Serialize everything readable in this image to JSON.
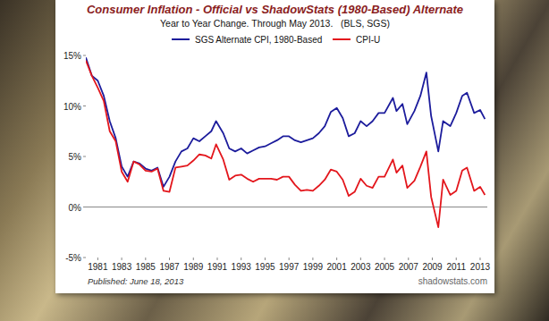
{
  "chart_data": {
    "type": "line",
    "title": "Consumer Inflation - Official vs ShadowStats (1980-Based) Alternate",
    "subtitle": "Year to Year Change. Through May 2013.   (BLS, SGS)",
    "annotations": [
      "Published: June 18, 2013",
      "shadowstats.com"
    ],
    "x": [
      1980.0,
      1980.5,
      1981.0,
      1981.5,
      1982.0,
      1982.5,
      1983.0,
      1983.5,
      1984.0,
      1984.5,
      1985.0,
      1985.5,
      1986.0,
      1986.5,
      1987.0,
      1987.5,
      1988.0,
      1988.5,
      1989.0,
      1989.5,
      1990.0,
      1990.5,
      1990.9,
      1991.5,
      1992.0,
      1992.5,
      1993.0,
      1993.5,
      1994.0,
      1994.5,
      1995.0,
      1995.5,
      1996.0,
      1996.5,
      1997.0,
      1997.5,
      1998.0,
      1998.5,
      1999.0,
      1999.5,
      2000.0,
      2000.5,
      2001.0,
      2001.5,
      2002.0,
      2002.5,
      2003.0,
      2003.5,
      2004.0,
      2004.5,
      2005.0,
      2005.7,
      2006.0,
      2006.5,
      2006.9,
      2007.5,
      2008.0,
      2008.5,
      2008.9,
      2009.5,
      2009.9,
      2010.5,
      2011.0,
      2011.5,
      2011.9,
      2012.5,
      2013.0,
      2013.4
    ],
    "series": [
      {
        "name": "SGS Alternate CPI, 1980-Based",
        "color": "#1c1c9c",
        "values": [
          14.8,
          13.0,
          12.5,
          11.0,
          8.5,
          6.8,
          4.0,
          3.0,
          4.5,
          4.3,
          3.8,
          3.6,
          3.9,
          2.0,
          3.0,
          4.5,
          5.5,
          5.8,
          6.8,
          6.5,
          7.0,
          7.5,
          8.5,
          7.3,
          5.8,
          5.5,
          5.8,
          5.3,
          5.6,
          5.9,
          6.0,
          6.3,
          6.6,
          7.0,
          7.0,
          6.6,
          6.4,
          6.6,
          6.8,
          7.3,
          8.0,
          9.4,
          9.8,
          8.8,
          7.0,
          7.3,
          8.5,
          8.0,
          8.5,
          9.3,
          9.3,
          10.8,
          9.5,
          10.2,
          8.2,
          9.5,
          11.0,
          13.3,
          9.0,
          5.5,
          8.5,
          8.0,
          9.3,
          11.0,
          11.3,
          9.3,
          9.6,
          8.7
        ]
      },
      {
        "name": "CPI-U",
        "color": "#e3161c",
        "values": [
          14.5,
          13.0,
          11.8,
          10.5,
          7.5,
          6.5,
          3.5,
          2.5,
          4.5,
          4.2,
          3.6,
          3.5,
          3.8,
          1.6,
          1.5,
          3.9,
          4.0,
          4.1,
          4.6,
          5.2,
          5.1,
          4.8,
          6.2,
          4.7,
          2.7,
          3.1,
          3.2,
          2.8,
          2.5,
          2.8,
          2.8,
          2.8,
          2.7,
          3.0,
          3.0,
          2.2,
          1.6,
          1.7,
          1.6,
          2.1,
          2.7,
          3.7,
          3.5,
          2.7,
          1.1,
          1.5,
          2.8,
          2.1,
          1.9,
          3.0,
          3.0,
          4.7,
          3.4,
          4.1,
          1.9,
          2.6,
          4.0,
          5.5,
          1.0,
          -2.0,
          2.7,
          1.2,
          1.6,
          3.6,
          3.9,
          1.6,
          2.0,
          1.2
        ]
      }
    ],
    "xlim": [
      1980,
      2013.6
    ],
    "xticks": [
      1981,
      1983,
      1985,
      1987,
      1989,
      1991,
      1993,
      1995,
      1997,
      1999,
      2001,
      2003,
      2005,
      2007,
      2009,
      2011,
      2013
    ],
    "ylim": [
      -5,
      15
    ],
    "yticks": [
      {
        "value": -5,
        "label": "-5%"
      },
      {
        "value": 0,
        "label": "0%"
      },
      {
        "value": 5,
        "label": "5%"
      },
      {
        "value": 10,
        "label": "10%"
      },
      {
        "value": 15,
        "label": "15%"
      }
    ],
    "grid": false,
    "legend": "top"
  }
}
